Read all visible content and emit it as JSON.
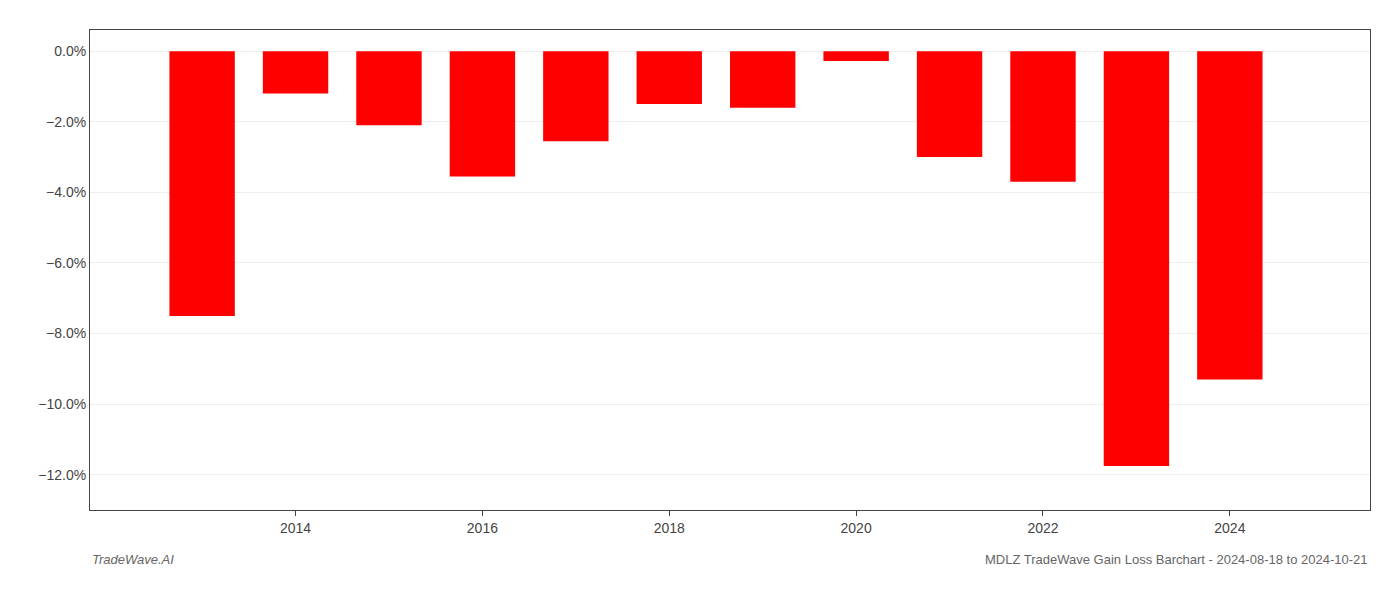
{
  "chart_data": {
    "type": "bar",
    "x": [
      2013,
      2014,
      2015,
      2016,
      2017,
      2018,
      2019,
      2020,
      2021,
      2022,
      2023,
      2024
    ],
    "values": [
      -7.5,
      -1.2,
      -2.1,
      -3.55,
      -2.55,
      -1.5,
      -1.6,
      -0.28,
      -3.0,
      -3.7,
      -11.75,
      -9.3
    ],
    "color": "#ff0000",
    "xlim": [
      2011.8,
      2025.5
    ],
    "xticks": [
      2014,
      2016,
      2018,
      2020,
      2022,
      2024
    ],
    "ylim": [
      -13.0,
      0.6
    ],
    "yticks": [
      {
        "value": 0.0,
        "label": "0.0%"
      },
      {
        "value": -2.0,
        "label": "−2.0%"
      },
      {
        "value": -4.0,
        "label": "−4.0%"
      },
      {
        "value": -6.0,
        "label": "−6.0%"
      },
      {
        "value": -8.0,
        "label": "−8.0%"
      },
      {
        "value": -10.0,
        "label": "−10.0%"
      },
      {
        "value": -12.0,
        "label": "−12.0%"
      }
    ],
    "grid": true,
    "annotations": [
      "TradeWave.AI",
      "MDLZ TradeWave Gain Loss Barchart - 2024-08-18 to 2024-10-21"
    ]
  }
}
